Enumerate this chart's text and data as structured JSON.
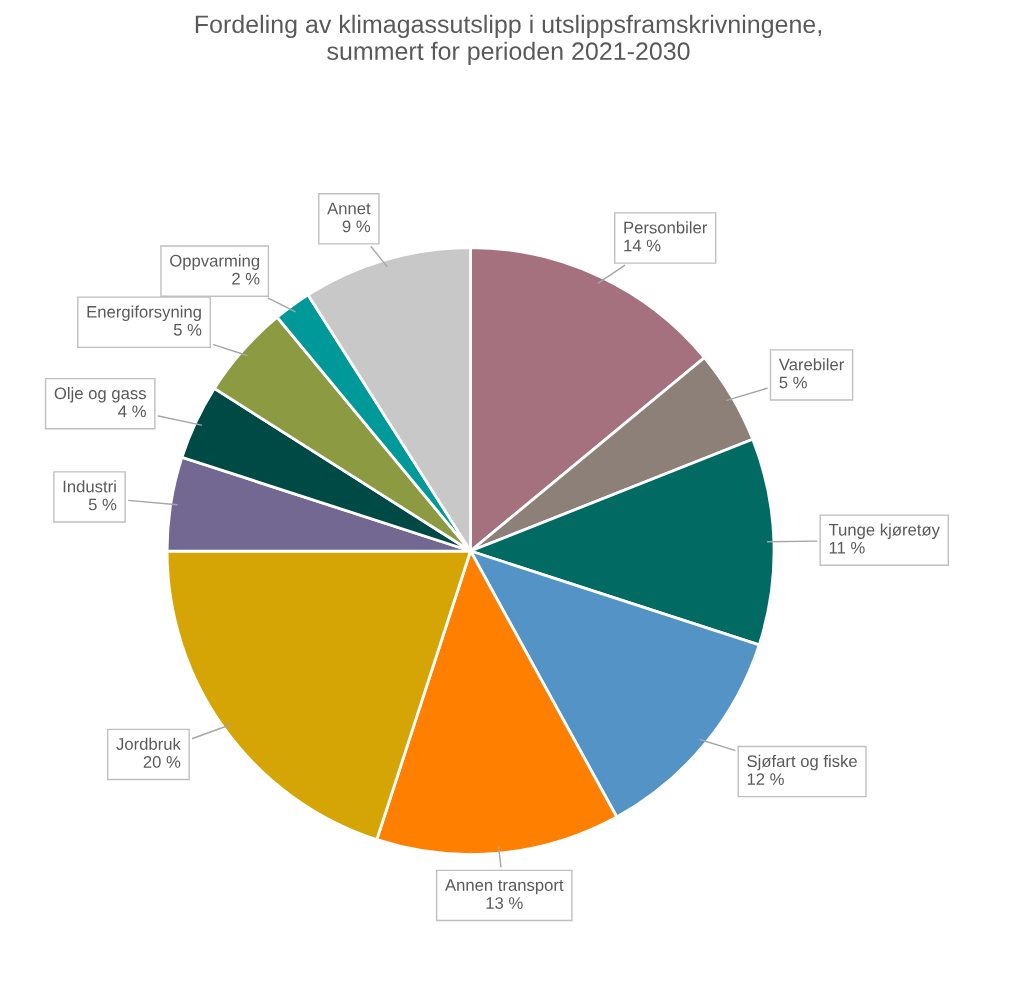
{
  "chart_data": {
    "type": "pie",
    "title": "Fordeling av klimagassutslipp i utslippsframskrivningene,\nsummert for perioden 2021-2030",
    "categories": [
      "Personbiler",
      "Varebiler",
      "Tunge kjøretøy",
      "Sjøfart og fiske",
      "Annen transport",
      "Jordbruk",
      "Industri",
      "Olje og gass",
      "Energiforsyning",
      "Oppvarming",
      "Annet"
    ],
    "values": [
      14,
      5,
      11,
      12,
      13,
      20,
      5,
      4,
      5,
      2,
      9
    ],
    "value_labels": [
      "14 %",
      "5 %",
      "11 %",
      "12 %",
      "13 %",
      "20 %",
      "5 %",
      "4 %",
      "5 %",
      "2 %",
      "9 %"
    ],
    "colors": [
      "#a5717f",
      "#8c8078",
      "#006a63",
      "#5393c5",
      "#ff7f00",
      "#d4a504",
      "#736891",
      "#004a45",
      "#8c9a42",
      "#00999a",
      "#c8c8c8"
    ],
    "legend": false
  }
}
